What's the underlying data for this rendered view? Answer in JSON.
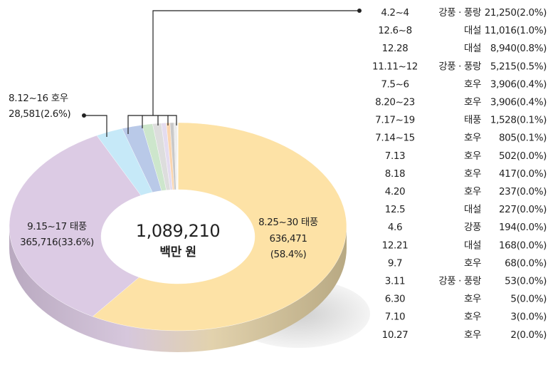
{
  "chart_data": {
    "type": "pie",
    "categories": [
      "8.25~30",
      "9.15~17",
      "8.12~16",
      "4.2~4",
      "12.6~8",
      "12.28",
      "11.11~12",
      "7.5~6",
      "8.20~23",
      "7.17~19",
      "7.14~15",
      "7.13",
      "8.18",
      "4.20",
      "12.5",
      "4.6",
      "12.21",
      "9.7",
      "3.11",
      "6.30",
      "7.10",
      "10.27"
    ],
    "kinds": [
      "태풍",
      "태풍",
      "호우",
      "강풍 · 풍랑",
      "대설",
      "대설",
      "강풍 · 풍랑",
      "호우",
      "호우",
      "태풍",
      "호우",
      "호우",
      "호우",
      "호우",
      "대설",
      "강풍",
      "대설",
      "호우",
      "강풍 · 풍랑",
      "호우",
      "호우",
      "호우"
    ],
    "values": [
      636471,
      365716,
      28581,
      21250,
      11016,
      8940,
      5215,
      3906,
      3906,
      1528,
      805,
      502,
      417,
      237,
      227,
      194,
      168,
      68,
      53,
      5,
      3,
      2
    ],
    "value_labels": [
      "636,471",
      "365,716",
      "28,581",
      "21,250",
      "11,016",
      "8,940",
      "5,215",
      "3,906",
      "3,906",
      "1,528",
      "805",
      "502",
      "417",
      "237",
      "227",
      "194",
      "168",
      "68",
      "53",
      "5",
      "3",
      "2"
    ],
    "percentages": [
      58.4,
      33.6,
      2.6,
      2.0,
      1.0,
      0.8,
      0.5,
      0.4,
      0.4,
      0.1,
      0.1,
      0.0,
      0.0,
      0.0,
      0.0,
      0.0,
      0.0,
      0.0,
      0.0,
      0.0,
      0.0,
      0.0
    ],
    "percent_labels": [
      "(58.4%)",
      "(33.6%)",
      "(2.6%)",
      "(2.0%)",
      "(1.0%)",
      "(0.8%)",
      "(0.5%)",
      "(0.4%)",
      "(0.4%)",
      "(0.1%)",
      "(0.1%)",
      "(0.0%)",
      "(0.0%)",
      "(0.0%)",
      "(0.0%)",
      "(0.0%)",
      "(0.0%)",
      "(0.0%)",
      "(0.0%)",
      "(0.0%)",
      "(0.0%)",
      "(0.0%)"
    ],
    "colors": [
      "#fde2a6",
      "#dccbe4",
      "#c6e9f8",
      "#b9c9e8",
      "#cde6cc",
      "#dddddd",
      "#e4dcef",
      "#fbd6b0",
      "#c9c9c9",
      "#e8e8e8",
      "#d4d4d4",
      "#bbbbbb",
      "#aaaaaa",
      "#999999",
      "#999999",
      "#999999",
      "#999999",
      "#999999",
      "#999999",
      "#888888",
      "#888888",
      "#7a7a7a"
    ],
    "center": {
      "value": 1089210,
      "label": "1,089,210"
    },
    "unit": "백만 원"
  }
}
